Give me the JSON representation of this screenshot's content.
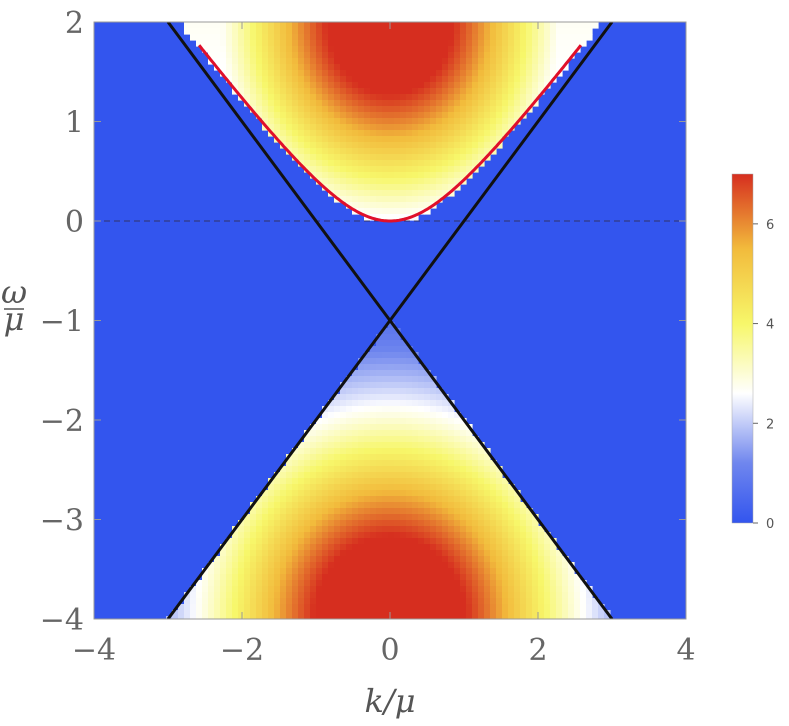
{
  "chart_data": {
    "type": "heatmap",
    "xlabel": "k/μ",
    "ylabel_num": "ω",
    "ylabel_den": "μ",
    "xlim": [
      -4,
      4
    ],
    "ylim": [
      -4,
      2
    ],
    "x_ticks": [
      -4,
      -2,
      0,
      2,
      4
    ],
    "y_ticks": [
      2,
      1,
      0,
      -1,
      -2,
      -3,
      -4
    ],
    "x_tick_labels": [
      "−4",
      "−2",
      "0",
      "2",
      "4"
    ],
    "y_tick_labels": [
      "2",
      "1",
      "0",
      "−1",
      "−2",
      "−3",
      "−4"
    ],
    "background_color": "#3355ee",
    "colorbar": {
      "range": [
        0,
        7
      ],
      "ticks": [
        0,
        2,
        4,
        6
      ],
      "tick_labels": [
        "0",
        "2",
        "4",
        "6"
      ],
      "stops": [
        {
          "value": 0,
          "color": "#3355ee"
        },
        {
          "value": 1.2,
          "color": "#6f86ee"
        },
        {
          "value": 2.6,
          "color": "#ffffff"
        },
        {
          "value": 4.0,
          "color": "#f7f76a"
        },
        {
          "value": 5.5,
          "color": "#f2bb3c"
        },
        {
          "value": 7,
          "color": "#d62e1f"
        }
      ]
    },
    "lines": [
      {
        "name": "lightcone-left",
        "color": "#111111",
        "points": [
          [
            -3,
            2
          ],
          [
            3,
            -4
          ]
        ]
      },
      {
        "name": "lightcone-right",
        "color": "#111111",
        "points": [
          [
            -3,
            -4
          ],
          [
            3,
            2
          ]
        ]
      }
    ],
    "curves": [
      {
        "name": "dispersion",
        "color": "#e0102a",
        "formula": "sqrt(1+k^2)-1",
        "x_range": [
          -2.58,
          2.58
        ]
      }
    ],
    "reference_line": {
      "y": 0,
      "style": "dashed"
    },
    "continuum_regions": [
      {
        "name": "upper-continuum",
        "apex": [
          0,
          0
        ],
        "peak": [
          0,
          2
        ],
        "peak_value": 7
      },
      {
        "name": "lower-continuum",
        "apex": [
          0,
          -1
        ],
        "peak": [
          0,
          -4
        ],
        "peak_value": 7
      }
    ]
  }
}
